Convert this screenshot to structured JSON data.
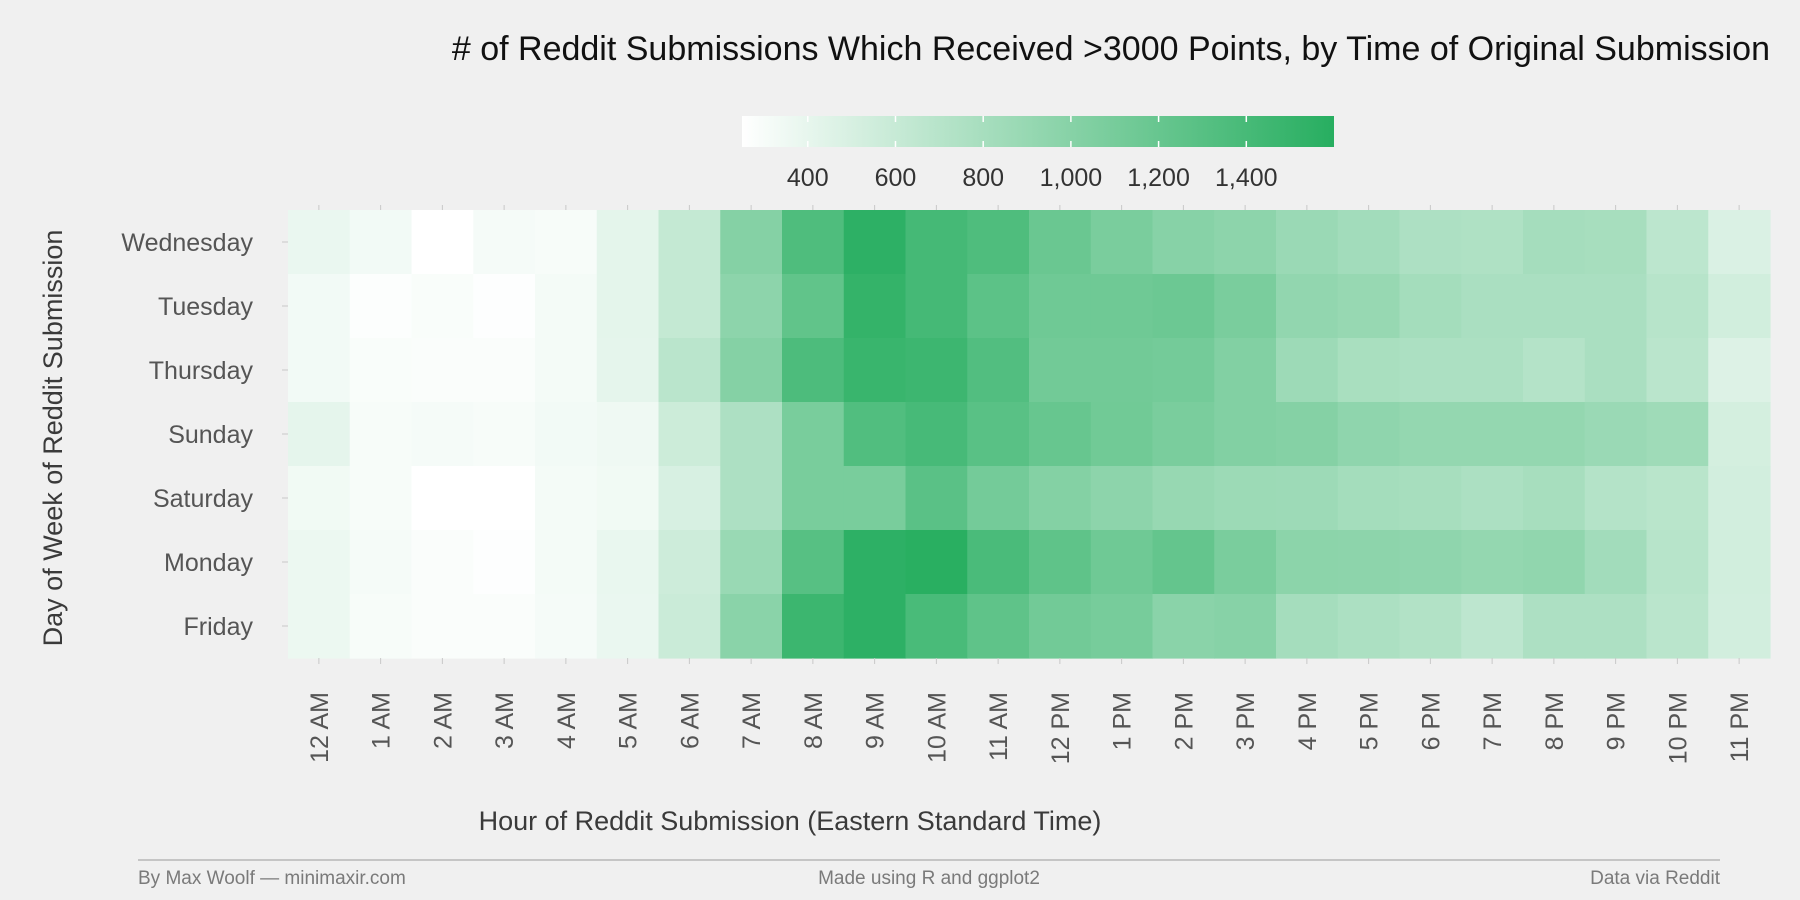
{
  "chart_data": {
    "type": "heatmap",
    "title": "# of Reddit Submissions Which Received >3000 Points, by Time of Original Submission",
    "xlabel": "Hour of Reddit Submission (Eastern Standard Time)",
    "ylabel": "Day of Week of Reddit Submission",
    "x_categories": [
      "12 AM",
      "1 AM",
      "2 AM",
      "3 AM",
      "4 AM",
      "5 AM",
      "6 AM",
      "7 AM",
      "8 AM",
      "9 AM",
      "10 AM",
      "11 AM",
      "12 PM",
      "1 PM",
      "2 PM",
      "3 PM",
      "4 PM",
      "5 PM",
      "6 PM",
      "7 PM",
      "8 PM",
      "9 PM",
      "10 PM",
      "11 PM"
    ],
    "y_categories": [
      "Wednesday",
      "Tuesday",
      "Thursday",
      "Sunday",
      "Saturday",
      "Monday",
      "Friday"
    ],
    "values": [
      [
        380,
        330,
        250,
        310,
        300,
        420,
        620,
        1010,
        1350,
        1560,
        1410,
        1350,
        1180,
        1080,
        1000,
        960,
        880,
        830,
        760,
        750,
        810,
        800,
        670,
        480
      ],
      [
        330,
        270,
        290,
        260,
        320,
        420,
        620,
        960,
        1240,
        1520,
        1410,
        1270,
        1150,
        1150,
        1170,
        1080,
        930,
        900,
        820,
        780,
        780,
        780,
        700,
        540
      ],
      [
        330,
        290,
        280,
        280,
        320,
        410,
        680,
        1010,
        1360,
        1490,
        1460,
        1330,
        1130,
        1130,
        1120,
        1030,
        860,
        790,
        770,
        770,
        720,
        780,
        680,
        460
      ],
      [
        410,
        300,
        310,
        300,
        330,
        350,
        570,
        760,
        1090,
        1340,
        1400,
        1290,
        1200,
        1140,
        1080,
        1030,
        1010,
        950,
        920,
        920,
        920,
        880,
        850,
        520
      ],
      [
        340,
        300,
        250,
        250,
        320,
        340,
        500,
        760,
        1090,
        1090,
        1280,
        1120,
        1020,
        960,
        900,
        870,
        860,
        820,
        800,
        770,
        800,
        720,
        690,
        530
      ],
      [
        370,
        310,
        280,
        260,
        320,
        390,
        560,
        890,
        1300,
        1560,
        1590,
        1380,
        1250,
        1150,
        1220,
        1080,
        970,
        960,
        950,
        920,
        940,
        830,
        700,
        540
      ],
      [
        370,
        300,
        280,
        280,
        310,
        380,
        580,
        980,
        1470,
        1560,
        1390,
        1250,
        1130,
        1100,
        980,
        1000,
        810,
        770,
        730,
        660,
        760,
        760,
        680,
        530
      ]
    ],
    "colorbar": {
      "low_color": "#ffffff",
      "high_color": "#27ae60",
      "range": [
        250,
        1600
      ],
      "ticks": [
        400,
        600,
        800,
        1000,
        1200,
        1400
      ],
      "tick_labels": [
        "400",
        "600",
        "800",
        "1,000",
        "1,200",
        "1,400"
      ],
      "placement": "top"
    },
    "grid": false
  },
  "footer": {
    "left": "By Max Woolf — minimaxir.com",
    "center": "Made using R and ggplot2",
    "right": "Data via Reddit"
  }
}
